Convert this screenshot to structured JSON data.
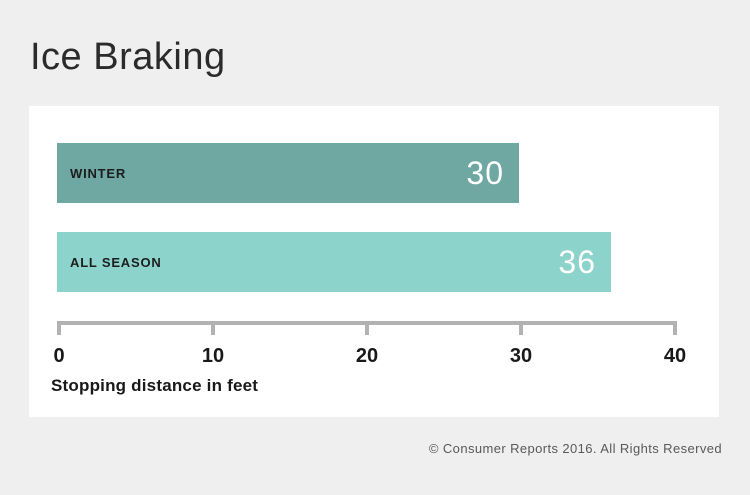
{
  "page": {
    "background_color": "#efefef",
    "panel_color": "#ffffff"
  },
  "chart_data": {
    "type": "bar",
    "orientation": "horizontal",
    "title": "Ice Braking",
    "xlabel": "Stopping distance in feet",
    "categories": [
      "WINTER",
      "ALL SEASON"
    ],
    "values": [
      30,
      36
    ],
    "bar_colors": [
      "#6fa7a2",
      "#8cd3cc"
    ],
    "value_label_color": "#ffffff",
    "xlim": [
      0,
      40
    ],
    "xticks": [
      0,
      10,
      20,
      30,
      40
    ],
    "grid": false,
    "legend": false,
    "axis_color": "#b2b2b2"
  },
  "footer": {
    "copyright": "© Consumer Reports 2016. All Rights Reserved"
  }
}
